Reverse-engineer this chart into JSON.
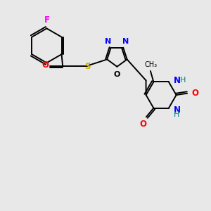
{
  "background_color": "#e8e8e8",
  "figsize": [
    3.0,
    3.0
  ],
  "dpi": 100,
  "bond_lw": 1.4,
  "bond_color": "#000000",
  "F_color": "#ff00ff",
  "N_color": "#0000ff",
  "O_color": "#ff0000",
  "S_color": "#ccaa00",
  "NH_color": "#008080",
  "xlim": [
    0,
    10
  ],
  "ylim": [
    0,
    10
  ]
}
